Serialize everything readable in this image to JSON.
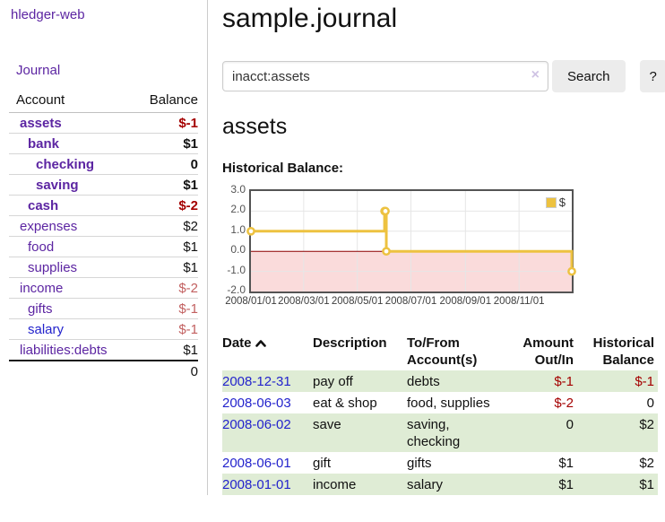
{
  "app": {
    "title": "hledger-web"
  },
  "colors": {
    "link_purple": "#5c25a2",
    "link_blue": "#2323cc",
    "negative_strong": "#a40000",
    "negative_soft": "#c26060",
    "row_green": "#dfecd5",
    "chart_gold": "#edc240",
    "chart_pink": "#fadbdb",
    "zero_line": "#8b0000",
    "plot_border": "#545454",
    "divider_gray": "#cccccc"
  },
  "sidebar": {
    "journal_label": "Journal",
    "accounts_table": {
      "headers": [
        "Account",
        "Balance"
      ],
      "rows": [
        {
          "name": "assets",
          "indent": 0,
          "matched": true,
          "balance": "$-1",
          "tone": "negative"
        },
        {
          "name": "bank",
          "indent": 1,
          "matched": true,
          "balance": "$1",
          "tone": "normal"
        },
        {
          "name": "checking",
          "indent": 2,
          "matched": true,
          "balance": "0",
          "tone": "normal"
        },
        {
          "name": "saving",
          "indent": 2,
          "matched": true,
          "balance": "$1",
          "tone": "normal"
        },
        {
          "name": "cash",
          "indent": 1,
          "matched": true,
          "balance": "$-2",
          "tone": "negative"
        },
        {
          "name": "expenses",
          "indent": 0,
          "matched": false,
          "balance": "$2",
          "tone": "normal"
        },
        {
          "name": "food",
          "indent": 1,
          "matched": false,
          "balance": "$1",
          "tone": "normal"
        },
        {
          "name": "supplies",
          "indent": 1,
          "matched": false,
          "balance": "$1",
          "tone": "normal"
        },
        {
          "name": "income",
          "indent": 0,
          "matched": false,
          "balance": "$-2",
          "tone": "negative-soft"
        },
        {
          "name": "gifts",
          "indent": 1,
          "matched": false,
          "balance": "$-1",
          "tone": "negative-soft"
        },
        {
          "name": "salary",
          "indent": 1,
          "matched": false,
          "balance": "$-1",
          "tone": "negative-soft",
          "link_color": "blue"
        },
        {
          "name": "liabilities:debts",
          "indent": 0,
          "matched": false,
          "balance": "$1",
          "tone": "normal"
        }
      ],
      "total": "0"
    }
  },
  "main": {
    "title": "sample.journal",
    "search": {
      "value": "inacct:assets",
      "clear_icon": "×",
      "button_label": "Search",
      "help_label": "?"
    },
    "account_heading": "assets",
    "register_table": {
      "headers": [
        "Date",
        "Description",
        "To/From Account(s)",
        "Amount Out/In",
        "Historical Balance"
      ],
      "rows": [
        {
          "date": "2008-12-31",
          "description": "pay off",
          "accounts": "debts",
          "amount": "$-1",
          "amount_tone": "negative",
          "balance": "$-1",
          "balance_tone": "negative",
          "shaded": true
        },
        {
          "date": "2008-06-03",
          "description": "eat & shop",
          "accounts": "food, supplies",
          "amount": "$-2",
          "amount_tone": "negative",
          "balance": "0",
          "balance_tone": "normal",
          "shaded": false
        },
        {
          "date": "2008-06-02",
          "description": "save",
          "accounts": "saving, checking",
          "amount": "0",
          "amount_tone": "normal",
          "balance": "$2",
          "balance_tone": "normal",
          "shaded": true
        },
        {
          "date": "2008-06-01",
          "description": "gift",
          "accounts": "gifts",
          "amount": "$1",
          "amount_tone": "normal",
          "balance": "$2",
          "balance_tone": "normal",
          "shaded": false
        },
        {
          "date": "2008-01-01",
          "description": "income",
          "accounts": "salary",
          "amount": "$1",
          "amount_tone": "normal",
          "balance": "$1",
          "balance_tone": "normal",
          "shaded": true
        }
      ]
    }
  },
  "chart_data": {
    "type": "line",
    "title": "Historical Balance:",
    "series_label": "$",
    "series": [
      {
        "name": "$",
        "color": "#edc240",
        "step": true,
        "points": [
          [
            "2008-01-01",
            1
          ],
          [
            "2008-06-01",
            2
          ],
          [
            "2008-06-02",
            2
          ],
          [
            "2008-06-03",
            0
          ],
          [
            "2008-12-31",
            -1
          ]
        ]
      }
    ],
    "x_range": [
      "2008-01-01",
      "2008-12-31"
    ],
    "x_tick_dates": [
      "2008-01-01",
      "2008-03-01",
      "2008-05-01",
      "2008-07-01",
      "2008-09-01",
      "2008-11-01"
    ],
    "x_tick_labels": [
      "2008/01/01",
      "2008/03/01",
      "2008/05/01",
      "2008/07/01",
      "2008/09/01",
      "2008/11/01"
    ],
    "y_ticks": [
      "3.0",
      "2.0",
      "1.0",
      "0.0",
      "-1.0",
      "-2.0"
    ],
    "ylim": [
      -2,
      3
    ],
    "grid": true,
    "grid_color": "#e6e6e6",
    "negative_region_color": "#fadbdb",
    "zero_line_color": "#8b0000",
    "legend_position": "top-right"
  }
}
